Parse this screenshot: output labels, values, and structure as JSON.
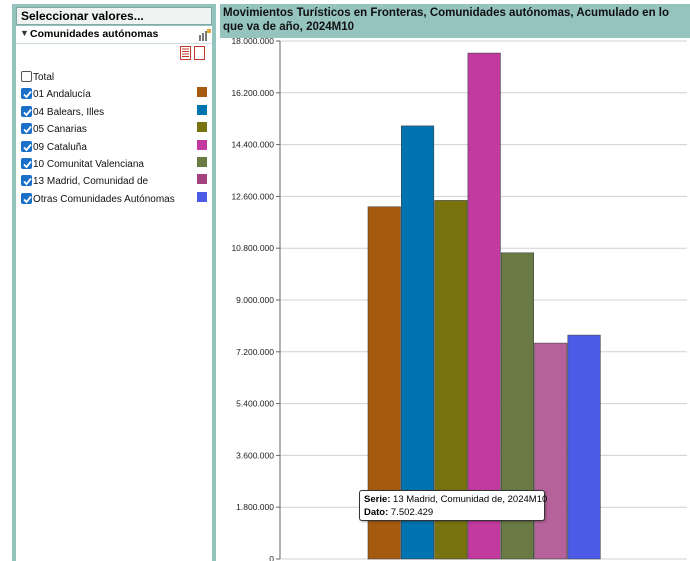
{
  "left_panel": {
    "title": "Seleccionar valores...",
    "dimension_title": "Comunidades autónomas",
    "items": [
      {
        "label": "Total",
        "checked": false,
        "color": null
      },
      {
        "label": "01 Andalucía",
        "checked": true,
        "color": "#a65a0f"
      },
      {
        "label": "04 Balears, Illes",
        "checked": true,
        "color": "#0074b0"
      },
      {
        "label": "05 Canarias",
        "checked": true,
        "color": "#78720f"
      },
      {
        "label": "09 Cataluña",
        "checked": true,
        "color": "#c23aa0"
      },
      {
        "label": "10 Comunitat Valenciana",
        "checked": true,
        "color": "#6a7a45"
      },
      {
        "label": "13 Madrid, Comunidad de",
        "checked": true,
        "color": "#a3427f"
      },
      {
        "label": "Otras Comunidades Autónomas",
        "checked": true,
        "color": "#4b5be6"
      }
    ]
  },
  "chart_data": {
    "type": "bar",
    "title": "Movimientos Turísticos en Fronteras, Comunidades autónomas, Acumulado en lo que va de año, 2024M10",
    "categories": [
      "2024M10"
    ],
    "series": [
      {
        "name": "01 Andalucía",
        "values": [
          12240000
        ],
        "color": "#a65a0f"
      },
      {
        "name": "04 Balears, Illes",
        "values": [
          15050000
        ],
        "color": "#0074b0"
      },
      {
        "name": "05 Canarias",
        "values": [
          12460000
        ],
        "color": "#78720f"
      },
      {
        "name": "09 Cataluña",
        "values": [
          17580000
        ],
        "color": "#c23aa0"
      },
      {
        "name": "10 Comunitat Valenciana",
        "values": [
          10640000
        ],
        "color": "#6a7a45"
      },
      {
        "name": "13 Madrid, Comunidad de",
        "values": [
          7502429
        ],
        "color": "#b5629a"
      },
      {
        "name": "Otras Comunidades Autónomas",
        "values": [
          7780000
        ],
        "color": "#4b5be6"
      }
    ],
    "ylim": [
      0,
      18000000
    ],
    "yticks": [
      "0",
      "1.800.000",
      "3.600.000",
      "5.400.000",
      "7.200.000",
      "9.000.000",
      "10.800.000",
      "12.600.000",
      "14.400.000",
      "16.200.000",
      "18.000.000"
    ],
    "grid": true
  },
  "tooltip": {
    "serie_label": "Serie:",
    "serie_value": "13 Madrid, Comunidad de, 2024M10",
    "dato_label": "Dato:",
    "dato_value": "7.502.429"
  }
}
